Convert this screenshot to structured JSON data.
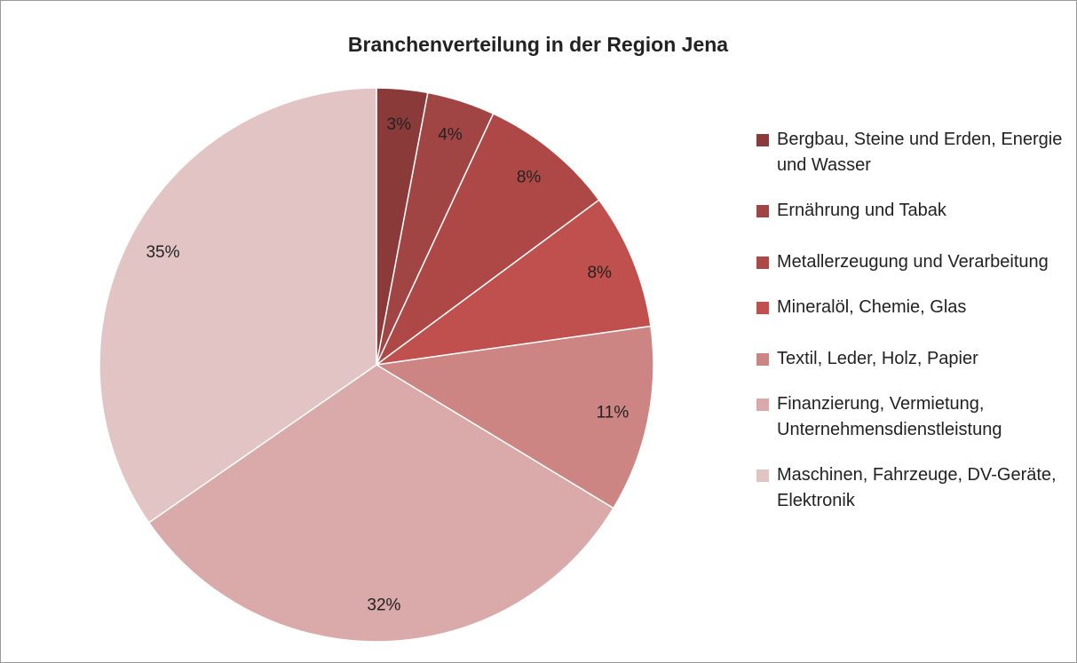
{
  "chart_data": {
    "type": "pie",
    "title": "Branchenverteilung in der Region Jena",
    "categories": [
      "Bergbau, Steine und Erden, Energie und Wasser",
      "Ernährung und Tabak",
      "Metallerzeugung und Verarbeitung",
      "Mineralöl, Chemie, Glas",
      "Textil, Leder, Holz, Papier",
      "Finanzierung, Vermietung, Unternehmensdienstleistung",
      "Maschinen, Fahrzeuge, DV-Geräte, Elektronik"
    ],
    "values": [
      3,
      4,
      8,
      8,
      11,
      32,
      35
    ],
    "value_labels": [
      "3%",
      "4%",
      "8%",
      "8%",
      "11%",
      "32%",
      "35%"
    ],
    "colors": [
      "#8b3a3a",
      "#a04444",
      "#ae4846",
      "#c0504d",
      "#cd8583",
      "#daa9a9",
      "#e2c4c5"
    ],
    "legend": "right"
  }
}
